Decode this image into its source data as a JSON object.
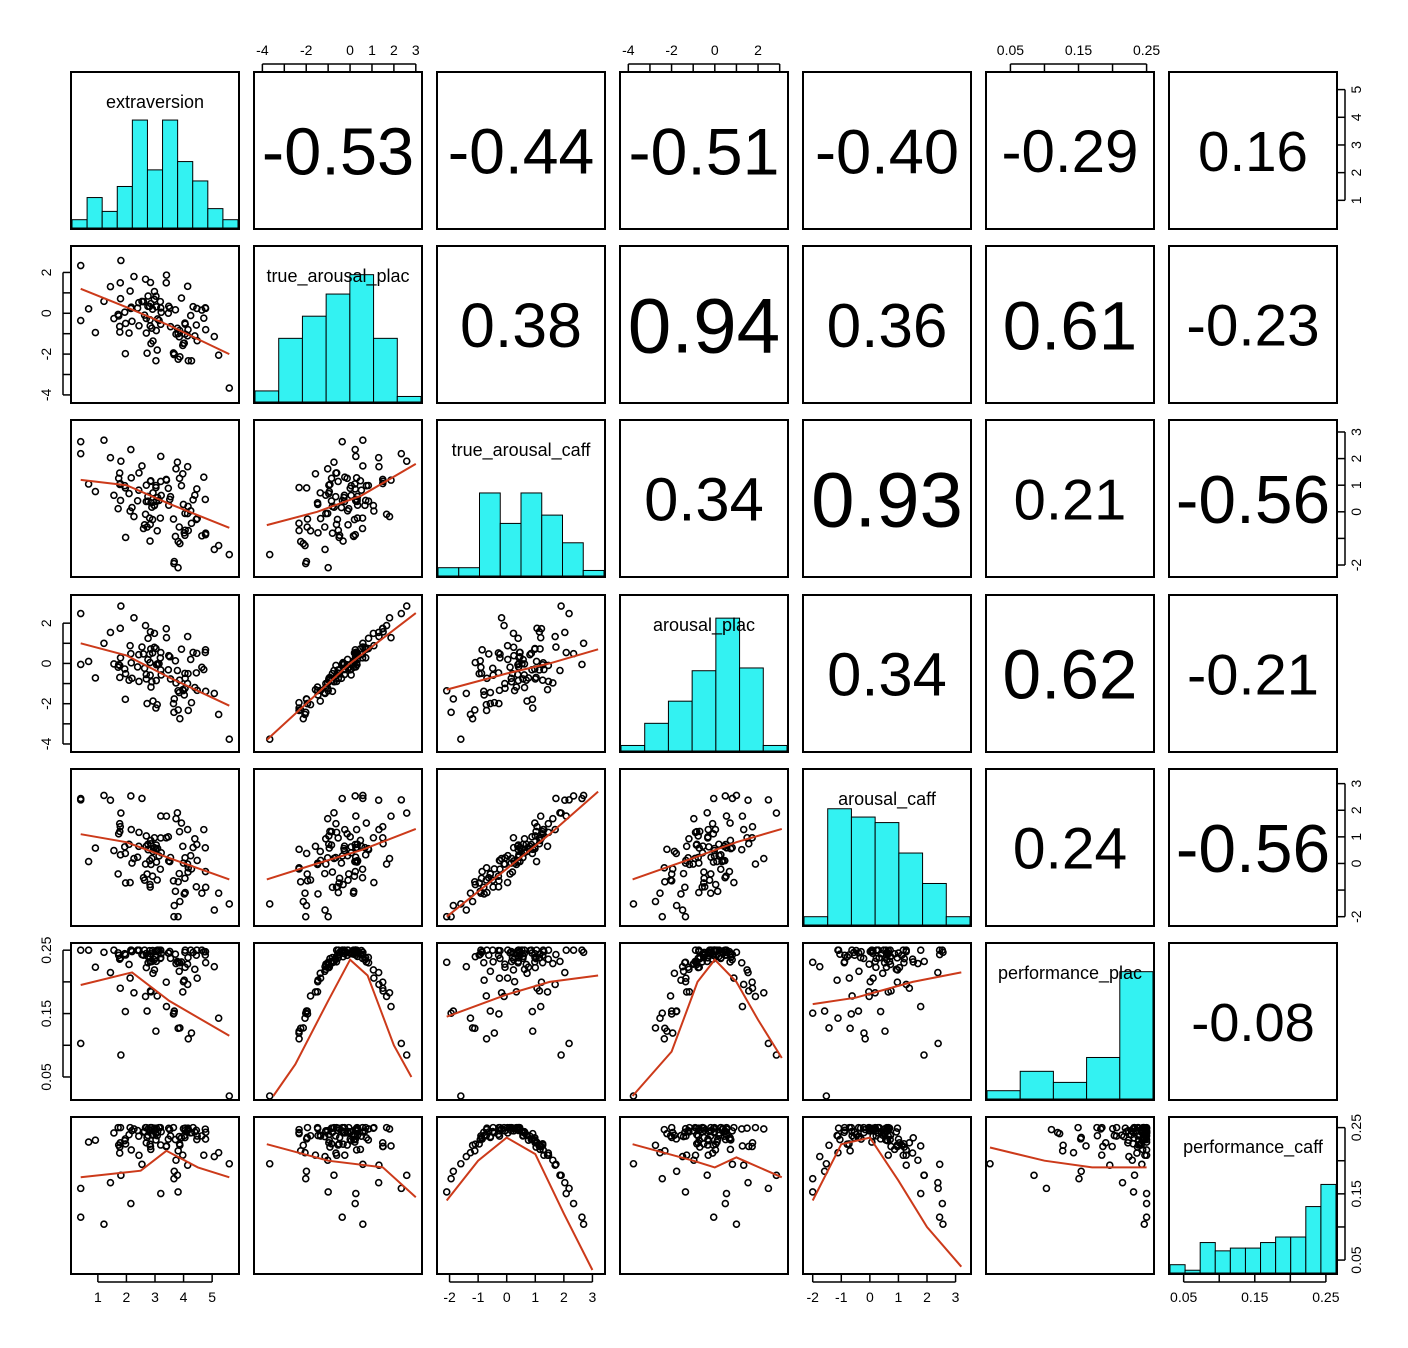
{
  "chart_data": {
    "type": "scatter",
    "variables": [
      "extraversion",
      "true_arousal_plac",
      "true_arousal_caff",
      "arousal_plac",
      "arousal_caff",
      "performance_plac",
      "performance_caff"
    ],
    "ranges": [
      [
        0.2,
        5.8
      ],
      [
        -4.2,
        3.1
      ],
      [
        -2.3,
        3.3
      ],
      [
        -4.2,
        3.2
      ],
      [
        -2.2,
        3.4
      ],
      [
        0.02,
        0.255
      ],
      [
        0.035,
        0.26
      ]
    ],
    "correlations": [
      [
        "",
        "-0.53",
        "-0.44",
        "-0.51",
        "-0.40",
        "-0.29",
        "0.16"
      ],
      [
        "",
        "",
        "0.38",
        "0.94",
        "0.36",
        "0.61",
        "-0.23"
      ],
      [
        "",
        "",
        "",
        "0.34",
        "0.93",
        "0.21",
        "-0.56"
      ],
      [
        "",
        "",
        "",
        "",
        "0.34",
        "0.62",
        "-0.21"
      ],
      [
        "",
        "",
        "",
        "",
        "",
        "0.24",
        "-0.56"
      ],
      [
        "",
        "",
        "",
        "",
        "",
        "",
        "-0.08"
      ],
      [
        "",
        "",
        "",
        "",
        "",
        "",
        ""
      ]
    ],
    "histograms": [
      [
        0.3,
        1.1,
        0.6,
        1.5,
        3.9,
        2.1,
        3.9,
        2.4,
        1.7,
        0.7,
        0.3
      ],
      [
        0.4,
        2.3,
        3.1,
        3.9,
        4.6,
        2.3,
        0.2
      ],
      [
        0.3,
        0.3,
        3.0,
        1.9,
        3.0,
        2.2,
        1.2,
        0.2
      ],
      [
        0.2,
        1.0,
        1.8,
        2.9,
        4.8,
        3.0,
        0.2
      ],
      [
        0.3,
        4.2,
        3.9,
        3.7,
        2.6,
        1.5,
        0.3
      ],
      [
        0.3,
        1.0,
        0.6,
        1.5,
        4.6
      ],
      [
        0.3,
        0.1,
        1.1,
        0.8,
        0.9,
        0.9,
        1.1,
        1.3,
        1.3,
        2.4,
        3.2
      ]
    ],
    "fit_lines": {
      "0_1": [
        [
          0.4,
          1.2
        ],
        [
          2.0,
          0.3
        ],
        [
          3.5,
          -0.6
        ],
        [
          5.6,
          -2.0
        ]
      ],
      "0_2": [
        [
          0.4,
          1.2
        ],
        [
          2.0,
          1.0
        ],
        [
          3.5,
          0.3
        ],
        [
          5.6,
          -0.6
        ]
      ],
      "0_3": [
        [
          0.4,
          1.0
        ],
        [
          2.0,
          0.4
        ],
        [
          3.5,
          -0.7
        ],
        [
          5.6,
          -2.1
        ]
      ],
      "0_4": [
        [
          0.4,
          1.1
        ],
        [
          2.0,
          0.8
        ],
        [
          3.5,
          0.2
        ],
        [
          5.6,
          -0.6
        ]
      ],
      "0_5": [
        [
          0.4,
          0.195
        ],
        [
          2.2,
          0.215
        ],
        [
          3.5,
          0.17
        ],
        [
          5.6,
          0.115
        ]
      ],
      "0_6": [
        [
          0.4,
          0.175
        ],
        [
          2.5,
          0.185
        ],
        [
          3.4,
          0.215
        ],
        [
          4.5,
          0.19
        ],
        [
          5.6,
          0.175
        ]
      ],
      "1_2": [
        [
          -3.8,
          -0.5
        ],
        [
          -1.5,
          0.0
        ],
        [
          0.5,
          0.6
        ],
        [
          3.0,
          1.8
        ]
      ],
      "1_3": [
        [
          -3.8,
          -3.8
        ],
        [
          0.0,
          0.0
        ],
        [
          3.0,
          2.5
        ]
      ],
      "1_4": [
        [
          -3.8,
          -0.6
        ],
        [
          -1.5,
          0.0
        ],
        [
          0.5,
          0.5
        ],
        [
          3.0,
          1.3
        ]
      ],
      "1_5": [
        [
          -3.5,
          0.02
        ],
        [
          -2.5,
          0.07
        ],
        [
          -1.0,
          0.17
        ],
        [
          0.0,
          0.235
        ],
        [
          0.8,
          0.21
        ],
        [
          2.0,
          0.1
        ],
        [
          2.8,
          0.05
        ]
      ],
      "1_6": [
        [
          -3.8,
          0.225
        ],
        [
          -1.0,
          0.2
        ],
        [
          1.5,
          0.19
        ],
        [
          3.0,
          0.145
        ]
      ],
      "2_3": [
        [
          -2.1,
          -1.3
        ],
        [
          0.0,
          -0.5
        ],
        [
          1.5,
          0.0
        ],
        [
          3.2,
          0.7
        ]
      ],
      "2_4": [
        [
          -2.1,
          -2.0
        ],
        [
          0.0,
          -0.2
        ],
        [
          1.5,
          1.1
        ],
        [
          3.2,
          2.7
        ]
      ],
      "2_5": [
        [
          -2.1,
          0.145
        ],
        [
          0.0,
          0.18
        ],
        [
          1.5,
          0.2
        ],
        [
          3.2,
          0.21
        ]
      ],
      "2_6": [
        [
          -2.1,
          0.14
        ],
        [
          -1.0,
          0.2
        ],
        [
          0.0,
          0.235
        ],
        [
          1.0,
          0.21
        ],
        [
          2.0,
          0.12
        ],
        [
          3.0,
          0.035
        ]
      ],
      "3_4": [
        [
          -3.8,
          -0.6
        ],
        [
          -1.0,
          0.2
        ],
        [
          1.0,
          0.8
        ],
        [
          3.1,
          1.3
        ]
      ],
      "3_5": [
        [
          -3.8,
          0.02
        ],
        [
          -2.0,
          0.09
        ],
        [
          -0.8,
          0.2
        ],
        [
          0.0,
          0.235
        ],
        [
          1.0,
          0.2
        ],
        [
          2.0,
          0.14
        ],
        [
          3.1,
          0.08
        ]
      ],
      "3_6": [
        [
          -3.8,
          0.225
        ],
        [
          -1.0,
          0.2
        ],
        [
          0.0,
          0.19
        ],
        [
          1.0,
          0.205
        ],
        [
          3.1,
          0.175
        ]
      ],
      "4_5": [
        [
          -2.0,
          0.165
        ],
        [
          -0.5,
          0.175
        ],
        [
          0.3,
          0.185
        ],
        [
          1.5,
          0.2
        ],
        [
          3.2,
          0.215
        ]
      ],
      "4_6": [
        [
          -2.0,
          0.14
        ],
        [
          -1.0,
          0.225
        ],
        [
          0.0,
          0.235
        ],
        [
          1.0,
          0.17
        ],
        [
          2.0,
          0.1
        ],
        [
          3.2,
          0.04
        ]
      ],
      "5_6": [
        [
          0.02,
          0.22
        ],
        [
          0.1,
          0.2
        ],
        [
          0.17,
          0.19
        ],
        [
          0.25,
          0.19
        ]
      ]
    },
    "axes": {
      "top": [
        {
          "col": 1,
          "ticks": [
            -4,
            -3,
            -2,
            -1,
            0,
            1,
            2,
            3
          ],
          "labels": [
            "-4",
            "",
            "-2",
            "",
            "0",
            "1",
            "2",
            "3"
          ]
        },
        {
          "col": 3,
          "ticks": [
            -4,
            -3,
            -2,
            -1,
            0,
            1,
            2,
            3
          ],
          "labels": [
            "-4",
            "",
            "-2",
            "",
            "0",
            "",
            "2",
            ""
          ]
        },
        {
          "col": 5,
          "ticks": [
            0.05,
            0.1,
            0.15,
            0.2,
            0.25
          ],
          "labels": [
            "0.05",
            "",
            "0.15",
            "",
            "0.25"
          ]
        }
      ],
      "bottom": [
        {
          "col": 0,
          "ticks": [
            1,
            2,
            3,
            4,
            5
          ],
          "labels": [
            "1",
            "2",
            "3",
            "4",
            "5"
          ]
        },
        {
          "col": 2,
          "ticks": [
            -2,
            -1,
            0,
            1,
            2,
            3
          ],
          "labels": [
            "-2",
            "-1",
            "0",
            "1",
            "2",
            "3"
          ]
        },
        {
          "col": 4,
          "ticks": [
            -2,
            -1,
            0,
            1,
            2,
            3
          ],
          "labels": [
            "-2",
            "-1",
            "0",
            "1",
            "2",
            "3"
          ]
        },
        {
          "col": 6,
          "ticks": [
            0.05,
            0.1,
            0.15,
            0.2,
            0.25
          ],
          "labels": [
            "0.05",
            "",
            "0.15",
            "",
            "0.25"
          ]
        }
      ],
      "left": [
        {
          "row": 1,
          "ticks": [
            -4,
            -3,
            -2,
            -1,
            0,
            1,
            2
          ],
          "labels": [
            "-4",
            "",
            "-2",
            "",
            "0",
            "",
            "2"
          ]
        },
        {
          "row": 3,
          "ticks": [
            -4,
            -3,
            -2,
            -1,
            0,
            1,
            2
          ],
          "labels": [
            "-4",
            "",
            "-2",
            "",
            "0",
            "",
            "2"
          ]
        },
        {
          "row": 5,
          "ticks": [
            0.05,
            0.1,
            0.15,
            0.2,
            0.25
          ],
          "labels": [
            "0.05",
            "",
            "0.15",
            "",
            "0.25"
          ]
        }
      ],
      "right": [
        {
          "row": 0,
          "ticks": [
            1,
            2,
            3,
            4,
            5
          ],
          "labels": [
            "1",
            "2",
            "3",
            "4",
            "5"
          ]
        },
        {
          "row": 2,
          "ticks": [
            -2,
            -1,
            0,
            1,
            2,
            3
          ],
          "labels": [
            "-2",
            "",
            "0",
            "1",
            "2",
            "3"
          ]
        },
        {
          "row": 4,
          "ticks": [
            -2,
            -1,
            0,
            1,
            2,
            3
          ],
          "labels": [
            "-2",
            "",
            "0",
            "1",
            "2",
            "3"
          ]
        },
        {
          "row": 6,
          "ticks": [
            0.05,
            0.1,
            0.15,
            0.2,
            0.25
          ],
          "labels": [
            "0.05",
            "",
            "0.15",
            "",
            "0.25"
          ]
        }
      ]
    },
    "histogram_ylim": [
      0,
      5.6
    ],
    "colors": {
      "histogram": "#33f2f2",
      "fit_line": "#cc3a1a",
      "points": "#000000"
    }
  }
}
